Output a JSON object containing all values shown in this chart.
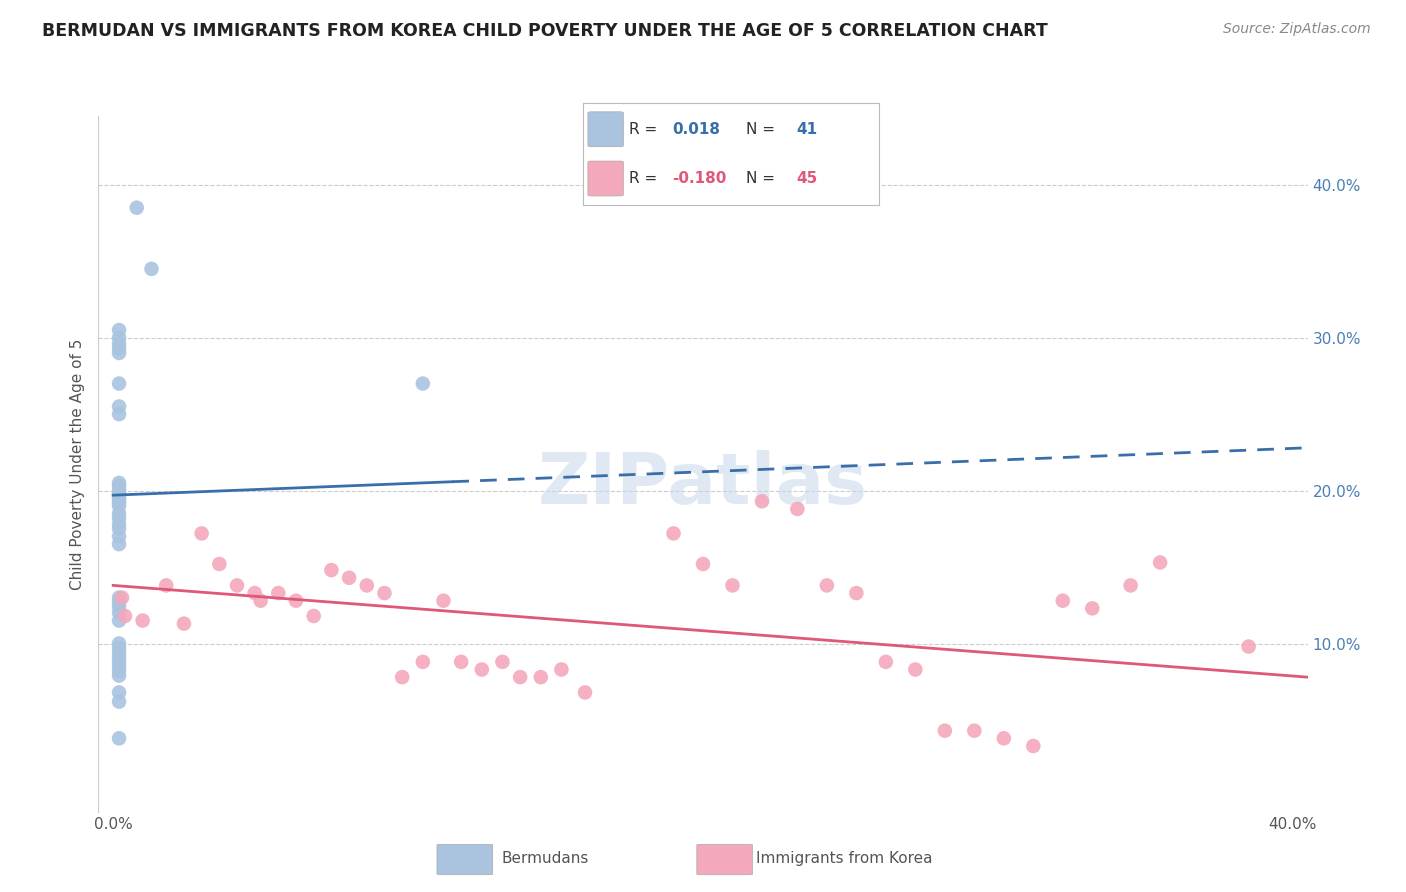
{
  "title": "BERMUDAN VS IMMIGRANTS FROM KOREA CHILD POVERTY UNDER THE AGE OF 5 CORRELATION CHART",
  "source": "Source: ZipAtlas.com",
  "ylabel": "Child Poverty Under the Age of 5",
  "right_yticks": [
    "10.0%",
    "20.0%",
    "30.0%",
    "40.0%"
  ],
  "right_ytick_vals": [
    0.1,
    0.2,
    0.3,
    0.4
  ],
  "xlim": [
    -0.005,
    0.405
  ],
  "ylim": [
    -0.01,
    0.445
  ],
  "blue_color": "#aac4e0",
  "pink_color": "#f4a8bc",
  "blue_line_color": "#3a6ea8",
  "pink_line_color": "#e05878",
  "grid_color": "#cccccc",
  "watermark": "ZIPatlas",
  "bermudans_x": [
    0.008,
    0.013,
    0.002,
    0.002,
    0.002,
    0.002,
    0.002,
    0.002,
    0.002,
    0.002,
    0.002,
    0.002,
    0.002,
    0.002,
    0.002,
    0.002,
    0.002,
    0.002,
    0.002,
    0.002,
    0.002,
    0.002,
    0.002,
    0.002,
    0.002,
    0.002,
    0.002,
    0.002,
    0.002,
    0.002,
    0.002,
    0.002,
    0.002,
    0.002,
    0.002,
    0.105,
    0.002,
    0.002,
    0.002,
    0.002,
    0.002
  ],
  "bermudans_y": [
    0.385,
    0.345,
    0.305,
    0.3,
    0.296,
    0.293,
    0.29,
    0.27,
    0.255,
    0.25,
    0.205,
    0.203,
    0.2,
    0.198,
    0.196,
    0.194,
    0.192,
    0.19,
    0.185,
    0.182,
    0.178,
    0.175,
    0.17,
    0.165,
    0.13,
    0.127,
    0.124,
    0.12,
    0.115,
    0.1,
    0.097,
    0.094,
    0.091,
    0.088,
    0.085,
    0.27,
    0.082,
    0.079,
    0.068,
    0.062,
    0.038
  ],
  "korea_x": [
    0.003,
    0.004,
    0.01,
    0.018,
    0.024,
    0.03,
    0.036,
    0.042,
    0.048,
    0.05,
    0.056,
    0.062,
    0.068,
    0.074,
    0.08,
    0.086,
    0.092,
    0.098,
    0.105,
    0.112,
    0.118,
    0.125,
    0.132,
    0.138,
    0.145,
    0.152,
    0.16,
    0.19,
    0.2,
    0.21,
    0.22,
    0.232,
    0.242,
    0.252,
    0.262,
    0.272,
    0.282,
    0.292,
    0.302,
    0.312,
    0.322,
    0.332,
    0.345,
    0.355,
    0.385
  ],
  "korea_y": [
    0.13,
    0.118,
    0.115,
    0.138,
    0.113,
    0.172,
    0.152,
    0.138,
    0.133,
    0.128,
    0.133,
    0.128,
    0.118,
    0.148,
    0.143,
    0.138,
    0.133,
    0.078,
    0.088,
    0.128,
    0.088,
    0.083,
    0.088,
    0.078,
    0.078,
    0.083,
    0.068,
    0.172,
    0.152,
    0.138,
    0.193,
    0.188,
    0.138,
    0.133,
    0.088,
    0.083,
    0.043,
    0.043,
    0.038,
    0.033,
    0.128,
    0.123,
    0.138,
    0.153,
    0.098
  ],
  "blue_trendline_x0": 0.0,
  "blue_trendline_x_split": 0.115,
  "blue_trendline_x1": 0.405,
  "blue_trendline_y0": 0.197,
  "blue_trendline_y1": 0.228,
  "pink_trendline_x0": 0.0,
  "pink_trendline_x1": 0.405,
  "pink_trendline_y0": 0.138,
  "pink_trendline_y1": 0.078,
  "legend_r1": "0.018",
  "legend_n1": "41",
  "legend_r2": "-0.180",
  "legend_n2": "45"
}
